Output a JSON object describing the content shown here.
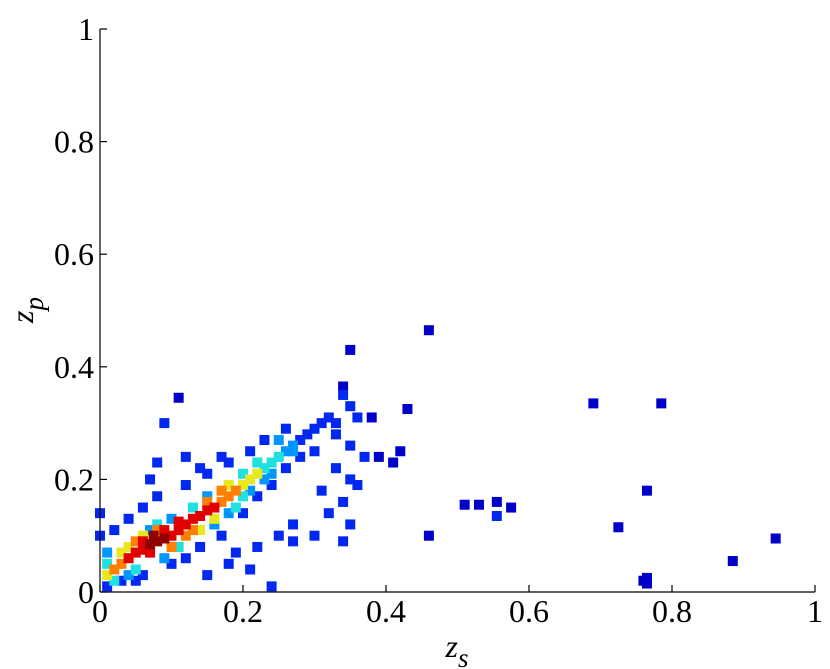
{
  "chart_data": {
    "type": "scatter",
    "xlabel": [
      "z",
      "s"
    ],
    "ylabel": [
      "z",
      "p"
    ],
    "xlim": [
      0,
      1
    ],
    "ylim": [
      0,
      1
    ],
    "xticks": [
      0,
      0.2,
      0.4,
      0.6,
      0.8,
      1
    ],
    "yticks": [
      0,
      0.2,
      0.4,
      0.6,
      0.8,
      1
    ],
    "series": [
      {
        "color": "#0000c8",
        "points": [
          [
            0.35,
            0.43
          ],
          [
            0.46,
            0.465
          ],
          [
            0.34,
            0.365
          ],
          [
            0.11,
            0.345
          ],
          [
            0.38,
            0.31
          ],
          [
            0.43,
            0.325
          ],
          [
            0.42,
            0.25
          ],
          [
            0.39,
            0.24
          ],
          [
            0.41,
            0.23
          ],
          [
            0.46,
            0.1
          ],
          [
            0.51,
            0.155
          ],
          [
            0.53,
            0.155
          ],
          [
            0.555,
            0.16
          ],
          [
            0.575,
            0.15
          ],
          [
            0.69,
            0.335
          ],
          [
            0.785,
            0.335
          ],
          [
            0.765,
            0.18
          ],
          [
            0.725,
            0.115
          ],
          [
            0.76,
            0.02
          ],
          [
            0.765,
            0.015
          ],
          [
            0.765,
            0.025
          ],
          [
            0.885,
            0.055
          ],
          [
            0.945,
            0.095
          ]
        ]
      },
      {
        "color": "#0028f0",
        "points": [
          [
            0.28,
            0.27
          ],
          [
            0.29,
            0.28
          ],
          [
            0.3,
            0.29
          ],
          [
            0.31,
            0.3
          ],
          [
            0.32,
            0.31
          ],
          [
            0.33,
            0.3
          ],
          [
            0.26,
            0.22
          ],
          [
            0.28,
            0.24
          ],
          [
            0.3,
            0.25
          ],
          [
            0.22,
            0.17
          ],
          [
            0.24,
            0.19
          ],
          [
            0.2,
            0.14
          ],
          [
            0.17,
            0.1
          ],
          [
            0.14,
            0.08
          ],
          [
            0.12,
            0.06
          ],
          [
            0.1,
            0.05
          ],
          [
            0.06,
            0.03
          ],
          [
            0.02,
            0.11
          ],
          [
            0.04,
            0.13
          ],
          [
            0.06,
            0.15
          ],
          [
            0.08,
            0.17
          ],
          [
            0.12,
            0.19
          ],
          [
            0.15,
            0.21
          ],
          [
            0.18,
            0.23
          ],
          [
            0.21,
            0.25
          ],
          [
            0.23,
            0.27
          ],
          [
            0.26,
            0.29
          ],
          [
            0,
            0.1
          ],
          [
            0,
            0.14
          ],
          [
            0.01,
            0.01
          ],
          [
            0.03,
            0.02
          ],
          [
            0.05,
            0.02
          ],
          [
            0.35,
            0.2
          ],
          [
            0.34,
            0.16
          ],
          [
            0.33,
            0.22
          ],
          [
            0.31,
            0.18
          ],
          [
            0.32,
            0.14
          ],
          [
            0.27,
            0.12
          ],
          [
            0.25,
            0.1
          ],
          [
            0.22,
            0.08
          ],
          [
            0.18,
            0.05
          ],
          [
            0.19,
            0.07
          ],
          [
            0.15,
            0.03
          ],
          [
            0.08,
            0.23
          ],
          [
            0.09,
            0.3
          ],
          [
            0.07,
            0.2
          ],
          [
            0.12,
            0.24
          ],
          [
            0.34,
            0.35
          ],
          [
            0.35,
            0.33
          ],
          [
            0.36,
            0.31
          ],
          [
            0.33,
            0.28
          ],
          [
            0.35,
            0.26
          ],
          [
            0.37,
            0.24
          ],
          [
            0.36,
            0.19
          ],
          [
            0.35,
            0.12
          ],
          [
            0.34,
            0.09
          ],
          [
            0.3,
            0.1
          ],
          [
            0.27,
            0.09
          ],
          [
            0.21,
            0.04
          ],
          [
            0.24,
            0.01
          ],
          [
            0.14,
            0.22
          ],
          [
            0.17,
            0.24
          ],
          [
            0.555,
            0.135
          ]
        ]
      },
      {
        "color": "#0096ff",
        "points": [
          [
            0.26,
            0.25
          ],
          [
            0.27,
            0.25
          ],
          [
            0.24,
            0.21
          ],
          [
            0.23,
            0.2
          ],
          [
            0.21,
            0.18
          ],
          [
            0.18,
            0.14
          ],
          [
            0.16,
            0.12
          ],
          [
            0.15,
            0.17
          ],
          [
            0.1,
            0.13
          ],
          [
            0.07,
            0.11
          ],
          [
            0.04,
            0.03
          ],
          [
            0.01,
            0.07
          ],
          [
            0.27,
            0.26
          ],
          [
            0.25,
            0.27
          ],
          [
            0.09,
            0.06
          ]
        ]
      },
      {
        "color": "#20e0e0",
        "points": [
          [
            0.23,
            0.22
          ],
          [
            0.24,
            0.23
          ],
          [
            0.22,
            0.23
          ],
          [
            0.25,
            0.24
          ],
          [
            0.19,
            0.15
          ],
          [
            0.2,
            0.17
          ],
          [
            0.01,
            0.05
          ],
          [
            0.02,
            0.02
          ],
          [
            0.11,
            0.08
          ],
          [
            0.13,
            0.15
          ],
          [
            0.2,
            0.21
          ],
          [
            0.08,
            0.12
          ],
          [
            0.05,
            0.04
          ]
        ]
      },
      {
        "color": "#e8e820",
        "points": [
          [
            0.2,
            0.19
          ],
          [
            0.21,
            0.2
          ],
          [
            0.22,
            0.21
          ],
          [
            0.01,
            0.03
          ],
          [
            0.04,
            0.08
          ],
          [
            0.14,
            0.11
          ],
          [
            0.16,
            0.13
          ],
          [
            0.18,
            0.19
          ],
          [
            0.06,
            0.1
          ],
          [
            0.03,
            0.07
          ]
        ]
      },
      {
        "color": "#ff8000",
        "points": [
          [
            0.02,
            0.04
          ],
          [
            0.03,
            0.05
          ],
          [
            0.17,
            0.16
          ],
          [
            0.18,
            0.17
          ],
          [
            0.19,
            0.18
          ],
          [
            0.05,
            0.09
          ],
          [
            0.13,
            0.11
          ],
          [
            0.15,
            0.16
          ],
          [
            0.08,
            0.11
          ],
          [
            0.1,
            0.08
          ],
          [
            0.12,
            0.1
          ],
          [
            0.17,
            0.18
          ]
        ]
      },
      {
        "color": "#e00000",
        "points": [
          [
            0.04,
            0.06
          ],
          [
            0.05,
            0.07
          ],
          [
            0.06,
            0.075
          ],
          [
            0.1,
            0.1
          ],
          [
            0.11,
            0.11
          ],
          [
            0.12,
            0.12
          ],
          [
            0.13,
            0.13
          ],
          [
            0.14,
            0.135
          ],
          [
            0.15,
            0.145
          ],
          [
            0.06,
            0.09
          ],
          [
            0.09,
            0.11
          ],
          [
            0.11,
            0.125
          ],
          [
            0.16,
            0.15
          ],
          [
            0.07,
            0.07
          ]
        ]
      },
      {
        "color": "#900000",
        "points": [
          [
            0.07,
            0.085
          ],
          [
            0.08,
            0.09
          ],
          [
            0.09,
            0.095
          ],
          [
            0.075,
            0.1
          ]
        ]
      }
    ]
  }
}
